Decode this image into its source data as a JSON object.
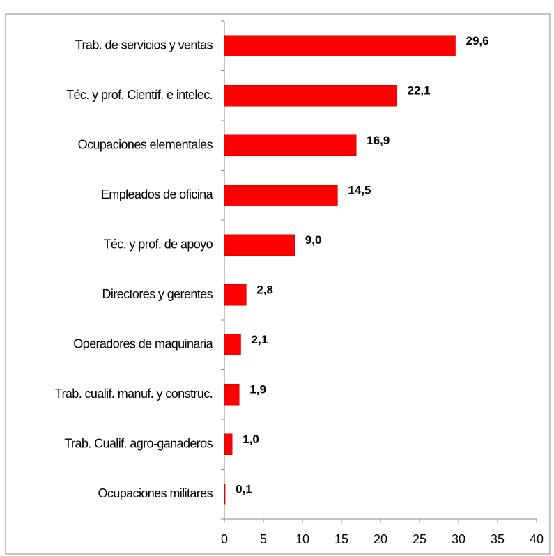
{
  "chart_data": {
    "type": "hbar",
    "categories": [
      "Trab. de servicios y ventas",
      "Téc. y prof. Científ. e intelec.",
      "Ocupaciones elementales",
      "Empleados de oficina",
      "Téc. y prof. de apoyo",
      "Directores y gerentes",
      "Operadores de maquinaria",
      "Trab. cualif. manuf. y construc.",
      "Trab. Cualif. agro-ganaderos",
      "Ocupaciones militares"
    ],
    "values": [
      29.6,
      22.1,
      16.9,
      14.5,
      9.0,
      2.8,
      2.1,
      1.9,
      1.0,
      0.1
    ],
    "value_labels": [
      "29,6",
      "22,1",
      "16,9",
      "14,5",
      "9,0",
      "2,8",
      "2,1",
      "1,9",
      "1,0",
      "0,1"
    ],
    "color": "#ff0000",
    "xlim": [
      0,
      40
    ],
    "xticks": [
      0,
      5,
      10,
      15,
      20,
      25,
      30,
      35,
      40
    ]
  }
}
